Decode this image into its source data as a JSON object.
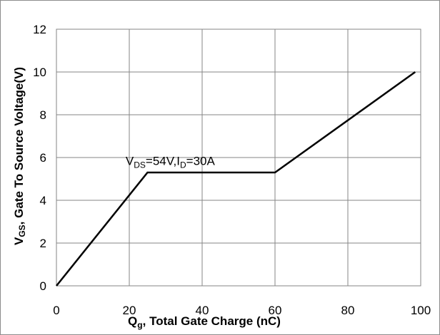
{
  "chart_data": {
    "type": "line",
    "xlim": [
      0,
      100
    ],
    "ylim": [
      0,
      12
    ],
    "x_ticks": [
      0,
      20,
      40,
      60,
      80,
      100
    ],
    "y_ticks": [
      0,
      2,
      4,
      6,
      8,
      10,
      12
    ],
    "x_tick_labels": [
      "0",
      "20",
      "40",
      "60",
      "80",
      "100"
    ],
    "y_tick_labels": [
      "0",
      "2",
      "4",
      "6",
      "8",
      "10",
      "12"
    ],
    "grid": true,
    "xlabel": {
      "main": "Q",
      "sub": "g",
      "rest": ", Total Gate Charge (nC)"
    },
    "ylabel": {
      "main": "V",
      "sub": "GS",
      "rest": ",  Gate To  Source Voltage(V)"
    },
    "series": [
      {
        "x": [
          0,
          25,
          60,
          98.5
        ],
        "y": [
          0,
          5.3,
          5.3,
          10
        ],
        "color": "#000000"
      }
    ],
    "annotation": {
      "parts": [
        {
          "t": "V",
          "sub": false
        },
        {
          "t": "DS",
          "sub": true
        },
        {
          "t": "=54V,I",
          "sub": false
        },
        {
          "t": "D",
          "sub": true
        },
        {
          "t": "=30A",
          "sub": false
        }
      ],
      "x": 19,
      "y": 5.65
    }
  }
}
